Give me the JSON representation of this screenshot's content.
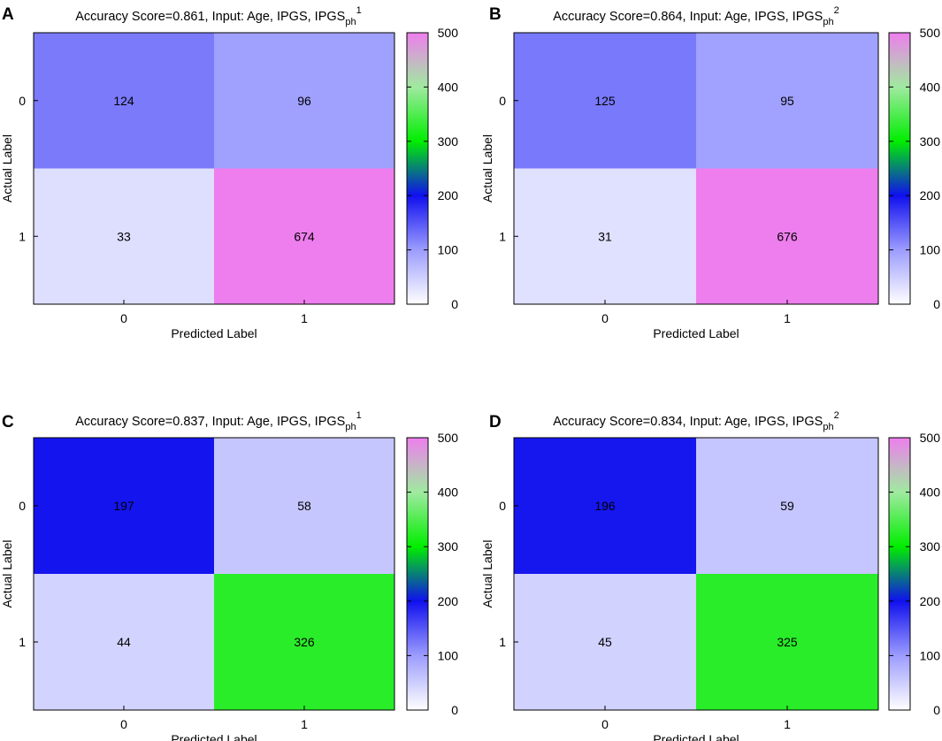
{
  "chart_data": [
    {
      "type": "heatmap",
      "panel_letter": "A",
      "title_main": "Accuracy Score=0.861, Input: Age, IPGS, IPGS",
      "title_sub": "ph",
      "title_sup": "1",
      "xlabel": "Predicted Label",
      "ylabel": "Actual Label",
      "x_categories": [
        "0",
        "1"
      ],
      "y_categories": [
        "0",
        "1"
      ],
      "matrix": [
        [
          124,
          96
        ],
        [
          33,
          674
        ]
      ],
      "colorbar_range": [
        0,
        500
      ],
      "colorbar_ticks": [
        "0",
        "100",
        "200",
        "300",
        "400",
        "500"
      ]
    },
    {
      "type": "heatmap",
      "panel_letter": "B",
      "title_main": "Accuracy Score=0.864, Input: Age, IPGS, IPGS",
      "title_sub": "ph",
      "title_sup": "2",
      "xlabel": "Predicted Label",
      "ylabel": "Actual Label",
      "x_categories": [
        "0",
        "1"
      ],
      "y_categories": [
        "0",
        "1"
      ],
      "matrix": [
        [
          125,
          95
        ],
        [
          31,
          676
        ]
      ],
      "colorbar_range": [
        0,
        500
      ],
      "colorbar_ticks": [
        "0",
        "100",
        "200",
        "300",
        "400",
        "500"
      ]
    },
    {
      "type": "heatmap",
      "panel_letter": "C",
      "title_main": "Accuracy Score=0.837, Input: Age, IPGS, IPGS",
      "title_sub": "ph",
      "title_sup": "1",
      "xlabel": "Predicted Label",
      "ylabel": "Actual Label",
      "x_categories": [
        "0",
        "1"
      ],
      "y_categories": [
        "0",
        "1"
      ],
      "matrix": [
        [
          197,
          58
        ],
        [
          44,
          326
        ]
      ],
      "colorbar_range": [
        0,
        500
      ],
      "colorbar_ticks": [
        "0",
        "100",
        "200",
        "300",
        "400",
        "500"
      ]
    },
    {
      "type": "heatmap",
      "panel_letter": "D",
      "title_main": "Accuracy Score=0.834, Input: Age, IPGS, IPGS",
      "title_sub": "ph",
      "title_sup": "2",
      "xlabel": "Predicted Label",
      "ylabel": "Actual Label",
      "x_categories": [
        "0",
        "1"
      ],
      "y_categories": [
        "0",
        "1"
      ],
      "matrix": [
        [
          196,
          59
        ],
        [
          45,
          325
        ]
      ],
      "colorbar_range": [
        0,
        500
      ],
      "colorbar_ticks": [
        "0",
        "100",
        "200",
        "300",
        "400",
        "500"
      ]
    }
  ],
  "colormap": {
    "stops": [
      0,
      100,
      200,
      300,
      400,
      500
    ],
    "colors": [
      "#ffffff",
      "#9c9cff",
      "#1010ee",
      "#00ee00",
      "#a0eaa0",
      "#ee7eee"
    ]
  }
}
